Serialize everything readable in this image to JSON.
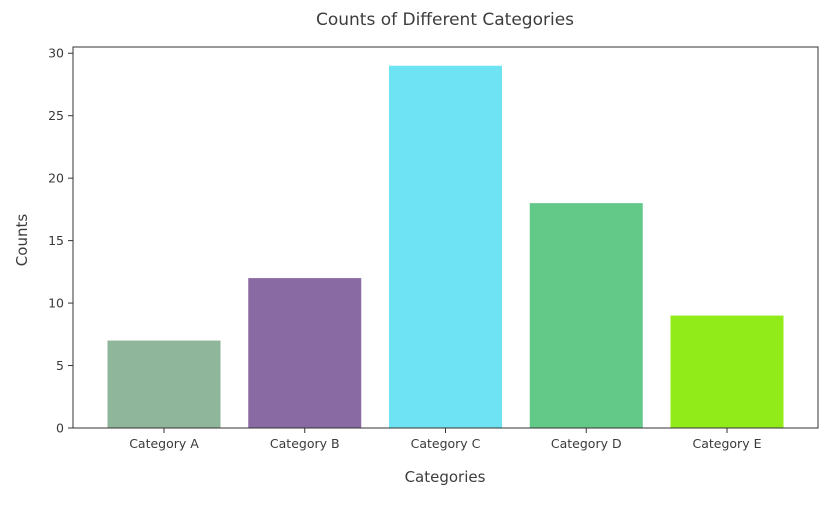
{
  "chart_data": {
    "type": "bar",
    "title": "Counts of Different Categories",
    "xlabel": "Categories",
    "ylabel": "Counts",
    "categories": [
      "Category A",
      "Category B",
      "Category C",
      "Category D",
      "Category E"
    ],
    "values": [
      7,
      12,
      29,
      18,
      9
    ],
    "colors": [
      "#8fb59a",
      "#8a6aa3",
      "#6ee3f4",
      "#62c988",
      "#90eb19"
    ],
    "ylim": [
      0,
      30.5
    ],
    "yticks": [
      0,
      5,
      10,
      15,
      20,
      25,
      30
    ],
    "grid": false,
    "legend": false
  }
}
